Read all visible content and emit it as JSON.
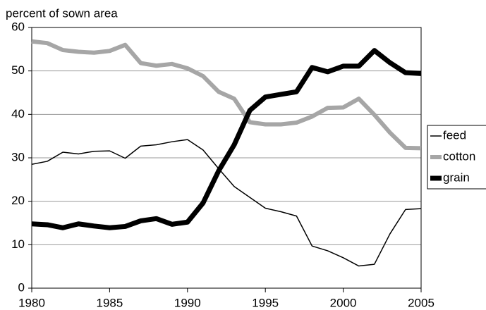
{
  "chart_data": {
    "type": "line",
    "y_axis_label": "percent of sown area",
    "x": [
      1980,
      1981,
      1982,
      1983,
      1984,
      1985,
      1986,
      1987,
      1988,
      1989,
      1990,
      1991,
      1992,
      1993,
      1994,
      1995,
      1996,
      1997,
      1998,
      1999,
      2000,
      2001,
      2002,
      2003,
      2004,
      2005
    ],
    "series": [
      {
        "name": "feed",
        "color": "#000000",
        "width": 1.5,
        "values": [
          28.5,
          29.2,
          31.3,
          30.9,
          31.5,
          31.6,
          29.9,
          32.7,
          33.0,
          33.7,
          34.2,
          31.8,
          27.5,
          23.4,
          20.9,
          18.4,
          17.6,
          16.6,
          9.7,
          8.6,
          7.0,
          5.1,
          5.5,
          12.5,
          18.1,
          18.3
        ]
      },
      {
        "name": "cotton",
        "color": "#a6a6a6",
        "width": 6,
        "values": [
          56.8,
          56.4,
          54.8,
          54.4,
          54.2,
          54.6,
          56.0,
          51.8,
          51.2,
          51.6,
          50.6,
          48.8,
          45.2,
          43.6,
          38.2,
          37.7,
          37.7,
          38.1,
          39.5,
          41.5,
          41.6,
          43.6,
          39.9,
          35.8,
          32.3,
          32.2
        ]
      },
      {
        "name": "grain",
        "color": "#000000",
        "width": 7,
        "values": [
          14.8,
          14.6,
          13.9,
          14.8,
          14.3,
          13.9,
          14.2,
          15.5,
          16.0,
          14.7,
          15.2,
          19.6,
          27.0,
          33.0,
          40.9,
          44.0,
          44.6,
          45.2,
          50.8,
          49.8,
          51.1,
          51.1,
          54.7,
          51.9,
          49.6,
          49.4
        ]
      }
    ],
    "xlim": [
      1980,
      2005
    ],
    "xticks": [
      1980,
      1985,
      1990,
      1995,
      2000,
      2005
    ],
    "ylim": [
      0,
      60
    ],
    "yticks": [
      0,
      10,
      20,
      30,
      40,
      50,
      60
    ],
    "grid": true,
    "legend": "right"
  }
}
